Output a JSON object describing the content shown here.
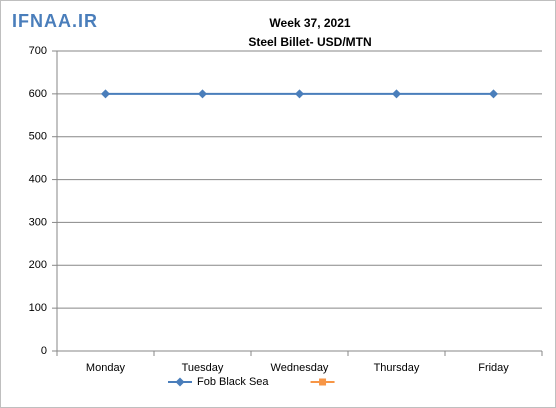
{
  "chart_data": {
    "type": "line",
    "watermark": "IFNAA.IR",
    "title": "Week 37, 2021",
    "subtitle": "Steel Billet- USD/MTN",
    "categories": [
      "Monday",
      "Tuesday",
      "Wednesday",
      "Thursday",
      "Friday"
    ],
    "series": [
      {
        "name": "Fob Black Sea",
        "color": "#4a7ebb",
        "marker": "diamond",
        "values": [
          600,
          600,
          600,
          600,
          600
        ]
      },
      {
        "color": "#f79646",
        "marker": "square",
        "values": [
          null,
          null,
          null,
          null,
          null
        ]
      }
    ],
    "ylim": [
      0,
      700
    ],
    "yticks": [
      0,
      100,
      200,
      300,
      400,
      500,
      600,
      700
    ],
    "grid": true,
    "legend": "bottom"
  }
}
